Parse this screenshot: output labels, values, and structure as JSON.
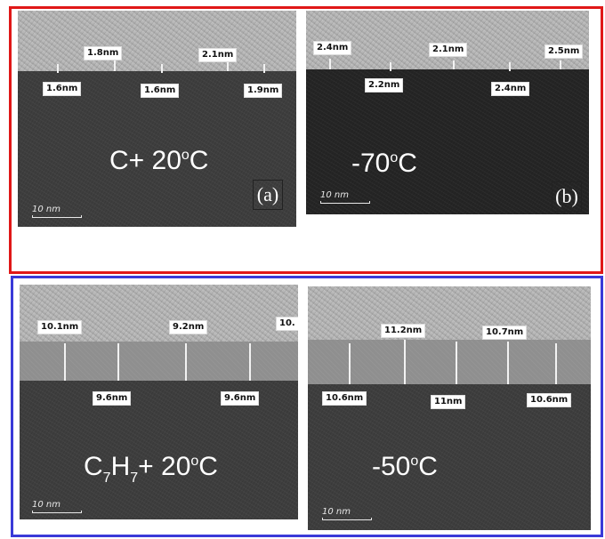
{
  "panel_a": {
    "labels": [
      "1.8nm",
      "2.1nm",
      "1.6nm",
      "1.6nm",
      "1.9nm"
    ],
    "condition": "C+   20",
    "degree": "o",
    "unit": "C",
    "letter": "(a)",
    "scale": "10 nm"
  },
  "panel_b": {
    "labels": [
      "2.4nm",
      "2.1nm",
      "2.5nm",
      "2.2nm",
      "2.4nm"
    ],
    "condition": "-70",
    "degree": "o",
    "unit": "C",
    "letter": "(b)",
    "scale": "10 nm"
  },
  "panel_c": {
    "labels": [
      "10.1nm",
      "9.2nm",
      "10.",
      "9.6nm",
      "9.6nm"
    ],
    "formula_c": "C",
    "formula_sub1": "7",
    "formula_h": "H",
    "formula_sub2": "7",
    "condition": "+  20",
    "degree": "o",
    "unit": "C",
    "scale": "10 nm"
  },
  "panel_d": {
    "labels": [
      "11.2nm",
      "10.7nm",
      "10.6nm",
      "11nm",
      "10.6nm"
    ],
    "condition": "-50",
    "degree": "o",
    "unit": "C",
    "scale": "10 nm"
  },
  "colors": {
    "frame_top": "#e01818",
    "frame_bottom": "#3a3ad8"
  }
}
